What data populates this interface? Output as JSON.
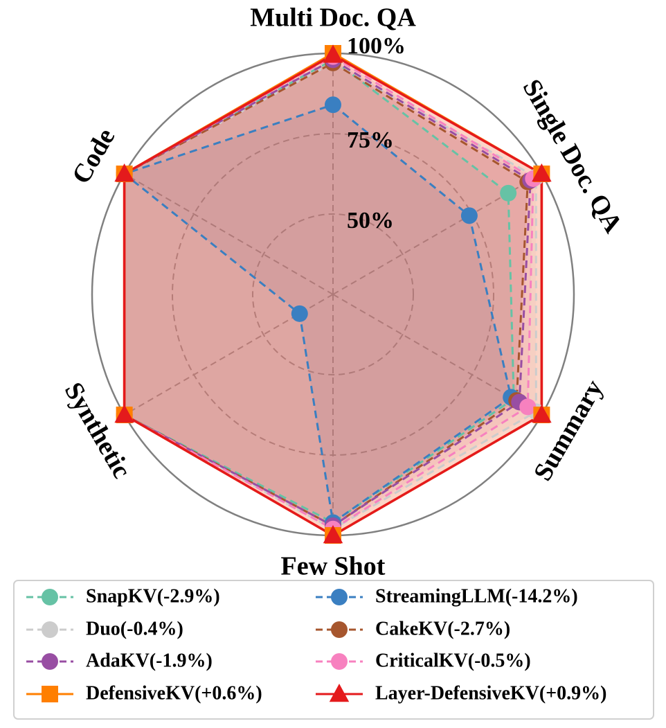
{
  "chart_data": {
    "type": "radar",
    "axes": [
      "Multi Doc. QA",
      "Single Doc. QA",
      "Summary",
      "Few Shot",
      "Synthetic",
      "Code"
    ],
    "radial_ticks": [
      {
        "value": 50,
        "label": "50%"
      },
      {
        "value": 75,
        "label": "75%"
      },
      {
        "value": 100,
        "label": "100%"
      }
    ],
    "rlim": [
      25,
      100
    ],
    "series": [
      {
        "name": "SnapKV(-2.9%)",
        "color": "#66c2a5",
        "marker": "circle",
        "line": "dashed",
        "values": [
          98,
          88,
          90,
          96,
          100,
          100
        ]
      },
      {
        "name": "StreamingLLM(-14.2%)",
        "color": "#3a7fc1",
        "marker": "circle",
        "line": "dashed",
        "values": [
          84,
          74,
          89,
          96,
          37,
          100
        ]
      },
      {
        "name": "Duo(-0.4%)",
        "color": "#cccccc",
        "marker": "circle",
        "line": "dashed",
        "values": [
          97,
          98,
          98,
          98,
          100,
          100
        ]
      },
      {
        "name": "CakeKV(-2.7%)",
        "color": "#a6562e",
        "marker": "circle",
        "line": "dashed",
        "values": [
          97,
          95,
          91,
          97,
          100,
          100
        ]
      },
      {
        "name": "AdaKV(-1.9%)",
        "color": "#984ea3",
        "marker": "circle",
        "line": "dashed",
        "values": [
          98,
          96,
          92,
          97,
          100,
          100
        ]
      },
      {
        "name": "CriticalKV(-0.5%)",
        "color": "#f781bf",
        "marker": "circle",
        "line": "dashed",
        "values": [
          99,
          97,
          95,
          98,
          100,
          100
        ]
      },
      {
        "name": "DefensiveKV(+0.6%)",
        "color": "#ff7f00",
        "marker": "square",
        "line": "solid",
        "values": [
          100,
          100,
          100,
          100,
          100,
          100
        ]
      },
      {
        "name": "Layer-DefensiveKV(+0.9%)",
        "color": "#e41a1c",
        "marker": "triangle",
        "line": "solid",
        "values": [
          99.5,
          100,
          100,
          100,
          100,
          100
        ]
      }
    ],
    "legend": {
      "placement": "bottom",
      "columns": 2,
      "order": [
        "SnapKV(-2.9%)",
        "StreamingLLM(-14.2%)",
        "Duo(-0.4%)",
        "CakeKV(-2.7%)",
        "AdaKV(-1.9%)",
        "CriticalKV(-0.5%)",
        "DefensiveKV(+0.6%)",
        "Layer-DefensiveKV(+0.9%)"
      ]
    }
  }
}
